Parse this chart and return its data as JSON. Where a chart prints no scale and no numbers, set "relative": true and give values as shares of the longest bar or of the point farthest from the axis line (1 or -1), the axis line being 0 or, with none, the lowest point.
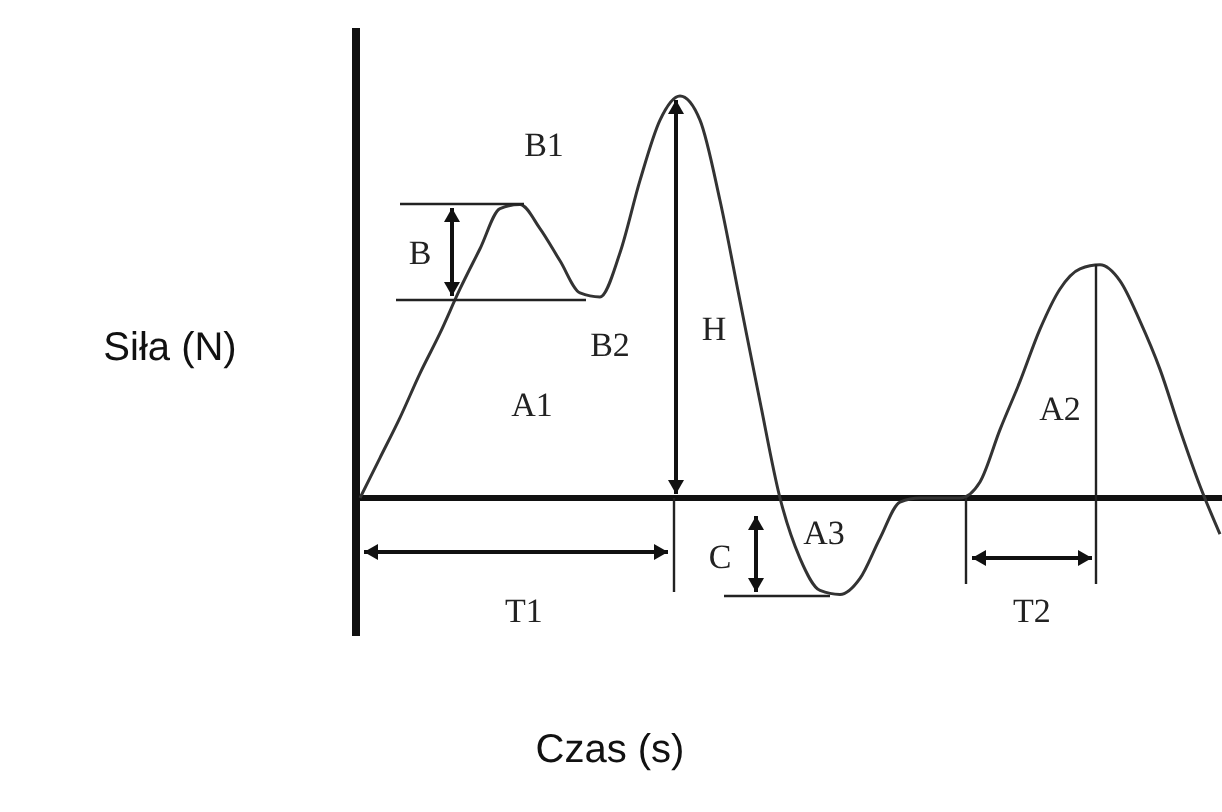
{
  "chart_data": {
    "type": "line",
    "relative": true,
    "xlabel": "Czas (s)",
    "ylabel": "Siła (N)",
    "color": "#333333",
    "categories": [
      null,
      null,
      null,
      null,
      null,
      null,
      null,
      null,
      null,
      null,
      null,
      null,
      null,
      null,
      null,
      null,
      null,
      null,
      null,
      null,
      null,
      null,
      null,
      null,
      null,
      null,
      null,
      null,
      null,
      null,
      null,
      null,
      null,
      null,
      null,
      null,
      null,
      null,
      null,
      null,
      null,
      null,
      null,
      null
    ],
    "values": [
      0,
      0.1,
      0.2,
      0.31,
      0.41,
      0.52,
      0.62,
      0.72,
      0.73,
      0.67,
      0.59,
      0.51,
      0.5,
      0.61,
      0.79,
      0.94,
      1,
      0.94,
      0.74,
      0.49,
      0.24,
      0,
      -0.15,
      -0.23,
      -0.24,
      -0.2,
      -0.1,
      -0.01,
      0,
      0,
      0,
      0.04,
      0.17,
      0.29,
      0.42,
      0.52,
      0.57,
      0.58,
      0.54,
      0.44,
      0.32,
      0.17,
      0.03,
      -0.09
    ],
    "annotations": [
      "B1",
      "B",
      "B2",
      "H",
      "A1",
      "C",
      "A3",
      "T1",
      "A2",
      "T2"
    ]
  }
}
